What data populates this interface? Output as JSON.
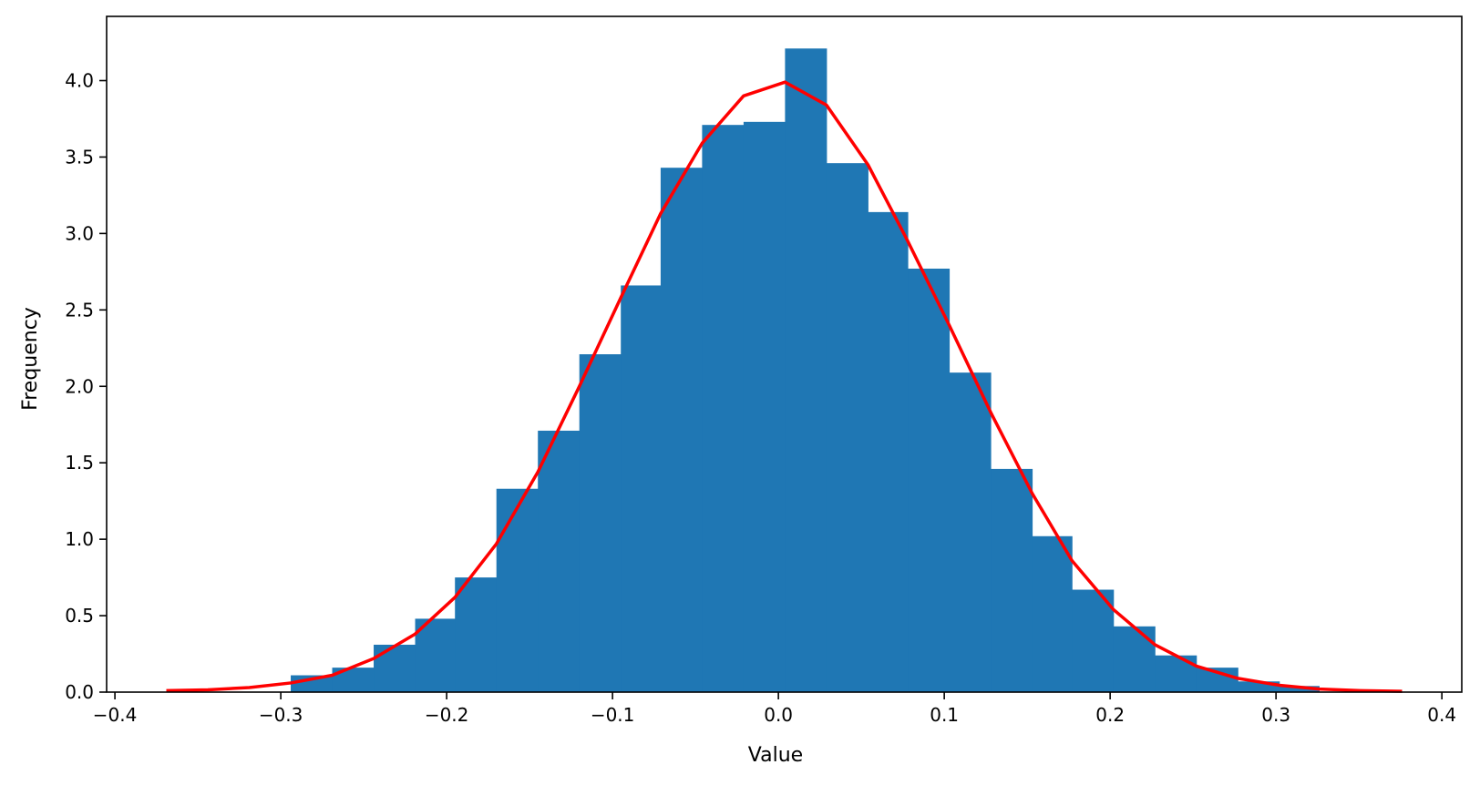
{
  "chart_data": {
    "type": "bar",
    "title": "",
    "xlabel": "Value",
    "ylabel": "Frequency",
    "xlim": [
      -0.405,
      0.412
    ],
    "ylim": [
      0,
      4.42
    ],
    "grid": false,
    "x_ticks": [
      -0.4,
      -0.3,
      -0.2,
      -0.1,
      0.0,
      0.1,
      0.2,
      0.3,
      0.4
    ],
    "x_tick_labels": [
      "−0.4",
      "−0.3",
      "−0.2",
      "−0.1",
      "0.0",
      "0.1",
      "0.2",
      "0.3",
      "0.4"
    ],
    "y_ticks": [
      0.0,
      0.5,
      1.0,
      1.5,
      2.0,
      2.5,
      3.0,
      3.5,
      4.0
    ],
    "y_tick_labels": [
      "0.0",
      "0.5",
      "1.0",
      "1.5",
      "2.0",
      "2.5",
      "3.0",
      "3.5",
      "4.0"
    ],
    "series": [
      {
        "type": "histogram",
        "color": "#1f77b4",
        "bin_edges": [
          -0.294,
          -0.269,
          -0.244,
          -0.219,
          -0.195,
          -0.17,
          -0.145,
          -0.12,
          -0.095,
          -0.071,
          -0.046,
          -0.021,
          0.004,
          0.029,
          0.054,
          0.078,
          0.103,
          0.128,
          0.153,
          0.177,
          0.202,
          0.227,
          0.252,
          0.277,
          0.302,
          0.326
        ],
        "densities": [
          0.11,
          0.16,
          0.31,
          0.48,
          0.75,
          1.33,
          1.71,
          2.21,
          2.66,
          3.43,
          3.71,
          3.73,
          4.21,
          3.46,
          3.14,
          2.77,
          2.09,
          1.46,
          1.02,
          0.67,
          0.43,
          0.24,
          0.16,
          0.07,
          0.04
        ]
      },
      {
        "type": "line",
        "color": "#ff0000",
        "x": [
          -0.369,
          -0.344,
          -0.319,
          -0.294,
          -0.269,
          -0.244,
          -0.219,
          -0.195,
          -0.17,
          -0.145,
          -0.12,
          -0.095,
          -0.071,
          -0.046,
          -0.021,
          0.004,
          0.029,
          0.054,
          0.078,
          0.103,
          0.128,
          0.153,
          0.177,
          0.202,
          0.227,
          0.252,
          0.277,
          0.302,
          0.326,
          0.351,
          0.376
        ],
        "y": [
          0.01,
          0.015,
          0.03,
          0.06,
          0.11,
          0.22,
          0.38,
          0.62,
          0.97,
          1.44,
          2.0,
          2.58,
          3.13,
          3.59,
          3.9,
          3.99,
          3.84,
          3.45,
          2.95,
          2.4,
          1.83,
          1.3,
          0.86,
          0.54,
          0.31,
          0.17,
          0.09,
          0.045,
          0.02,
          0.01,
          0.005
        ]
      }
    ]
  }
}
